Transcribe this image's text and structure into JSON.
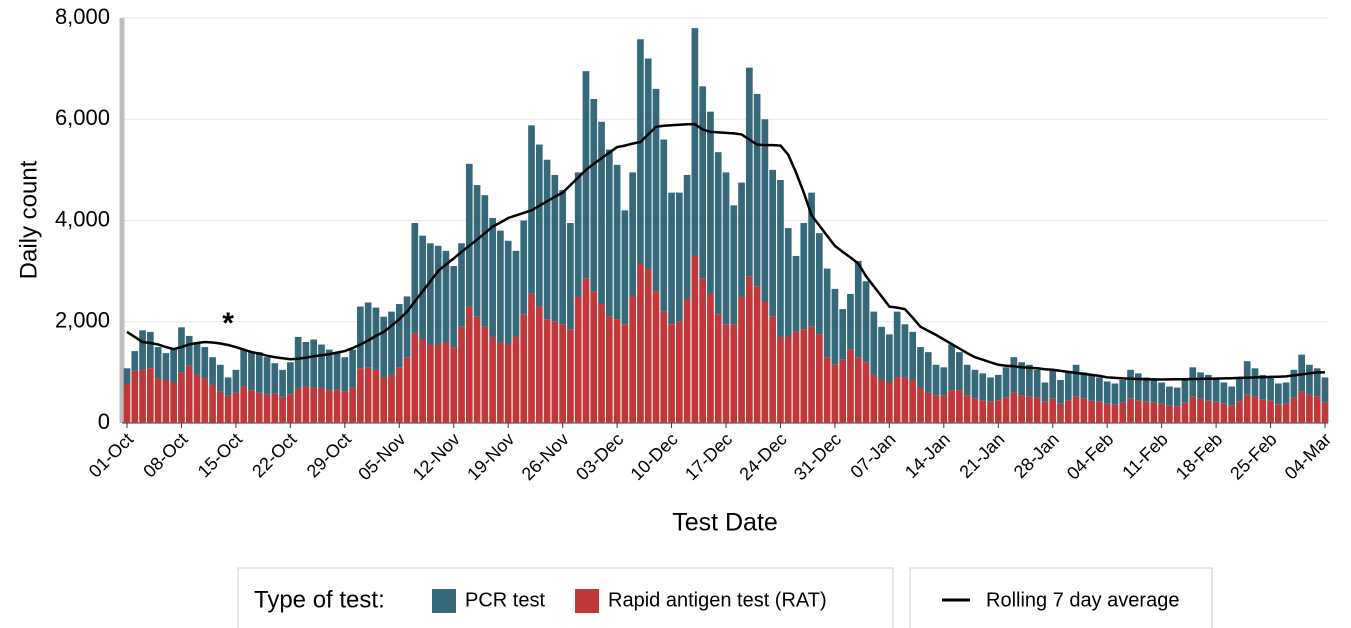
{
  "chart_data": {
    "type": "bar",
    "stacked": true,
    "x_label": "Test Date",
    "y_label": "Daily count",
    "legend_title": "Type of test:",
    "annotation": "*",
    "ylim": [
      0,
      8000
    ],
    "yticks": [
      0,
      {
        "value": 2000,
        "label": "2,000"
      },
      {
        "value": 4000,
        "label": "4,000"
      },
      {
        "value": 6000,
        "label": "6,000"
      },
      {
        "value": 8000,
        "label": "8,000"
      }
    ],
    "grid": true,
    "categories": [
      "01-Oct",
      null,
      null,
      null,
      null,
      null,
      null,
      "08-Oct",
      null,
      null,
      null,
      null,
      null,
      null,
      "15-Oct",
      null,
      null,
      null,
      null,
      null,
      null,
      "22-Oct",
      null,
      null,
      null,
      null,
      null,
      null,
      "29-Oct",
      null,
      null,
      null,
      null,
      null,
      null,
      "05-Nov",
      null,
      null,
      null,
      null,
      null,
      null,
      "12-Nov",
      null,
      null,
      null,
      null,
      null,
      null,
      "19-Nov",
      null,
      null,
      null,
      null,
      null,
      null,
      "26-Nov",
      null,
      null,
      null,
      null,
      null,
      null,
      "03-Dec",
      null,
      null,
      null,
      null,
      null,
      null,
      "10-Dec",
      null,
      null,
      null,
      null,
      null,
      null,
      "17-Dec",
      null,
      null,
      null,
      null,
      null,
      null,
      "24-Dec",
      null,
      null,
      null,
      null,
      null,
      null,
      "31-Dec",
      null,
      null,
      null,
      null,
      null,
      null,
      "07-Jan",
      null,
      null,
      null,
      null,
      null,
      null,
      "14-Jan",
      null,
      null,
      null,
      null,
      null,
      null,
      "21-Jan",
      null,
      null,
      null,
      null,
      null,
      null,
      "28-Jan",
      null,
      null,
      null,
      null,
      null,
      null,
      "04-Feb",
      null,
      null,
      null,
      null,
      null,
      null,
      "11-Feb",
      null,
      null,
      null,
      null,
      null,
      null,
      "18-Feb",
      null,
      null,
      null,
      null,
      null,
      null,
      "25-Feb",
      null,
      null,
      null,
      null,
      null,
      null,
      "04-Mar"
    ],
    "series": [
      {
        "name": "PCR test",
        "color": "#35697a",
        "values": [
          320,
          390,
          780,
          720,
          620,
          530,
          680,
          890,
          590,
          630,
          620,
          550,
          530,
          360,
          450,
          730,
          770,
          800,
          740,
          600,
          530,
          630,
          1020,
          880,
          950,
          850,
          800,
          720,
          680,
          750,
          1220,
          1280,
          1230,
          1200,
          1250,
          1250,
          1200,
          2170,
          2050,
          2000,
          1950,
          1800,
          1600,
          1650,
          2820,
          2600,
          2600,
          2350,
          2200,
          2050,
          1700,
          1850,
          3330,
          3200,
          3150,
          2900,
          2650,
          2100,
          2450,
          4100,
          3800,
          3600,
          3300,
          3050,
          2250,
          2450,
          4430,
          4150,
          4000,
          3400,
          2600,
          2550,
          2450,
          4500,
          3800,
          3600,
          3200,
          3000,
          2350,
          2250,
          4120,
          3800,
          3600,
          2900,
          3100,
          2150,
          1500,
          2100,
          2650,
          2000,
          1750,
          1500,
          1000,
          1100,
          1900,
          1600,
          1250,
          1050,
          950,
          1300,
          1050,
          950,
          800,
          800,
          600,
          550,
          900,
          750,
          600,
          570,
          540,
          480,
          500,
          600,
          700,
          650,
          620,
          550,
          380,
          570,
          470,
          550,
          630,
          520,
          510,
          480,
          440,
          420,
          450,
          570,
          530,
          480,
          450,
          420,
          380,
          370,
          450,
          580,
          520,
          510,
          480,
          420,
          380,
          470,
          660,
          560,
          490,
          480,
          410,
          420,
          550,
          730,
          590,
          560,
          500
        ]
      },
      {
        "name": "Rapid antigen test (RAT)",
        "color": "#c0383a",
        "values": [
          760,
          1030,
          1050,
          1080,
          880,
          850,
          800,
          1000,
          1130,
          950,
          880,
          750,
          620,
          540,
          600,
          720,
          650,
          600,
          560,
          580,
          520,
          570,
          680,
          720,
          700,
          700,
          650,
          660,
          620,
          700,
          1080,
          1100,
          1050,
          900,
          950,
          1100,
          1300,
          1780,
          1650,
          1550,
          1550,
          1600,
          1500,
          1900,
          2300,
          2100,
          1900,
          1700,
          1600,
          1550,
          1700,
          2150,
          2550,
          2300,
          2050,
          2000,
          1950,
          1850,
          2500,
          2850,
          2600,
          2350,
          2100,
          2050,
          1950,
          2500,
          3150,
          3050,
          2600,
          2200,
          1950,
          2000,
          2450,
          3300,
          2850,
          2550,
          2150,
          1950,
          1950,
          2500,
          2900,
          2700,
          2400,
          2100,
          1700,
          1700,
          1800,
          1850,
          1900,
          1750,
          1300,
          1150,
          1250,
          1450,
          1300,
          1200,
          950,
          850,
          800,
          900,
          900,
          850,
          700,
          600,
          550,
          550,
          650,
          650,
          550,
          480,
          440,
          420,
          450,
          500,
          600,
          550,
          530,
          500,
          420,
          480,
          380,
          450,
          520,
          480,
          440,
          420,
          380,
          360,
          400,
          480,
          450,
          420,
          400,
          380,
          340,
          330,
          400,
          520,
          480,
          440,
          420,
          380,
          340,
          430,
          560,
          520,
          460,
          440,
          370,
          380,
          500,
          620,
          560,
          520,
          400
        ]
      },
      {
        "name": "Rolling 7 day average",
        "type": "line",
        "color": "#000000",
        "values": [
          1800,
          1700,
          1600,
          1580,
          1550,
          1500,
          1460,
          1500,
          1550,
          1580,
          1600,
          1590,
          1570,
          1540,
          1500,
          1450,
          1400,
          1370,
          1330,
          1300,
          1280,
          1260,
          1270,
          1290,
          1320,
          1340,
          1360,
          1390,
          1420,
          1480,
          1550,
          1630,
          1720,
          1800,
          1920,
          2050,
          2200,
          2400,
          2600,
          2800,
          3000,
          3130,
          3250,
          3380,
          3500,
          3620,
          3750,
          3880,
          3960,
          4050,
          4100,
          4150,
          4200,
          4290,
          4380,
          4470,
          4550,
          4700,
          4850,
          5000,
          5120,
          5230,
          5340,
          5450,
          5480,
          5520,
          5550,
          5700,
          5850,
          5870,
          5880,
          5890,
          5900,
          5900,
          5800,
          5750,
          5740,
          5730,
          5720,
          5700,
          5600,
          5500,
          5490,
          5490,
          5480,
          5300,
          4950,
          4550,
          4100,
          3900,
          3700,
          3500,
          3380,
          3270,
          3150,
          2900,
          2700,
          2500,
          2300,
          2280,
          2250,
          2080,
          1900,
          1820,
          1740,
          1650,
          1560,
          1470,
          1380,
          1300,
          1250,
          1200,
          1150,
          1130,
          1120,
          1100,
          1090,
          1080,
          1060,
          1050,
          1030,
          1010,
          990,
          970,
          950,
          930,
          900,
          890,
          880,
          875,
          870,
          865,
          862,
          860,
          862,
          864,
          866,
          870,
          872,
          875,
          878,
          880,
          885,
          890,
          895,
          900,
          905,
          910,
          915,
          920,
          940,
          960,
          980,
          1000,
          1000
        ]
      }
    ]
  }
}
